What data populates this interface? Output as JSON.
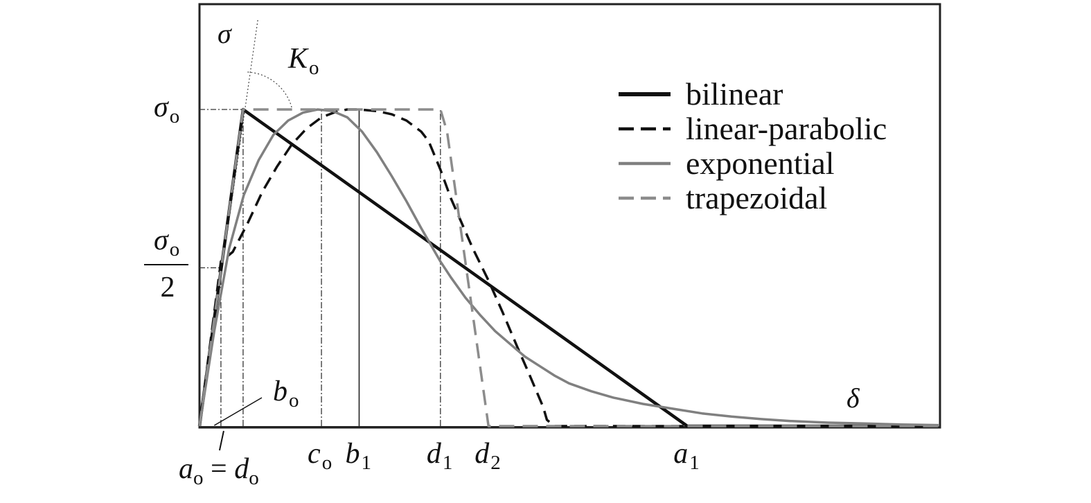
{
  "chart_data": {
    "type": "line",
    "title": "",
    "xlabel": "δ",
    "ylabel": "σ",
    "xlim": [
      0,
      100
    ],
    "ylim": [
      0,
      1.2
    ],
    "grid": false,
    "legend_placement": "top-right",
    "peak_label": {
      "main": "σ",
      "sub": "o"
    },
    "half_label": {
      "num_main": "σ",
      "num_sub": "o",
      "den": "2"
    },
    "stiffness_label": {
      "main": "K",
      "sub": "o"
    },
    "x_markers": [
      {
        "id": "a0",
        "x": 2.9
      },
      {
        "id": "b0",
        "x": 5.9
      },
      {
        "id": "c0",
        "x": 16.5
      },
      {
        "id": "b1",
        "x": 21.6
      },
      {
        "id": "d1",
        "x": 32.6
      },
      {
        "id": "d2",
        "x": 39.1
      },
      {
        "id": "a1",
        "x": 66.0
      }
    ],
    "x_labels": [
      {
        "id": "c0",
        "main": "c",
        "sub": "o",
        "x": 16.5
      },
      {
        "id": "b1",
        "main": "b",
        "sub": "1",
        "x": 21.6
      },
      {
        "id": "d1",
        "main": "d",
        "sub": "1",
        "x": 32.6
      },
      {
        "id": "d2",
        "main": "d",
        "sub": "2",
        "x": 39.1
      },
      {
        "id": "a1",
        "main": "a",
        "sub": "1",
        "x": 66.0
      }
    ],
    "a0_label": {
      "a_main": "a",
      "a_sub": "o",
      "eq": "=",
      "d_main": "d",
      "d_sub": "o"
    },
    "b0_label": {
      "main": "b",
      "sub": "o"
    },
    "series": [
      {
        "name": "bilinear",
        "color": "#111111",
        "dash": "solid",
        "x": [
          0,
          5.9,
          66.0,
          100
        ],
        "y": [
          0,
          1.0,
          0,
          0
        ]
      },
      {
        "name": "linear-parabolic",
        "color": "#111111",
        "dash": "dashed",
        "x": [
          0,
          2.9,
          4.5,
          6.5,
          8.5,
          10.5,
          12.5,
          14.5,
          16.5,
          18.5,
          20.0,
          21.6,
          24.0,
          26.0,
          28.0,
          30.0,
          31.0,
          32.6,
          34.0,
          35.5,
          37.0,
          39.1,
          41.0,
          43.0,
          44.5,
          46.5,
          47.0,
          48.0,
          100
        ],
        "y": [
          0,
          0.52,
          0.55,
          0.64,
          0.74,
          0.82,
          0.89,
          0.94,
          0.975,
          0.993,
          1.0,
          1.0,
          0.995,
          0.985,
          0.965,
          0.93,
          0.9,
          0.81,
          0.72,
          0.64,
          0.56,
          0.46,
          0.36,
          0.25,
          0.17,
          0.06,
          0.02,
          0,
          0
        ]
      },
      {
        "name": "exponential",
        "color": "#808080",
        "dash": "solid",
        "x": [
          0,
          2,
          4,
          6,
          8,
          10,
          12,
          14,
          16,
          18,
          20,
          22,
          24,
          26,
          28,
          30,
          32.6,
          34,
          36,
          38,
          40,
          42,
          44,
          46,
          48,
          50,
          53,
          56,
          60,
          64,
          68,
          72,
          76,
          80,
          85,
          90,
          95,
          100
        ],
        "y": [
          0,
          0.3,
          0.56,
          0.73,
          0.84,
          0.92,
          0.965,
          0.99,
          1.0,
          0.995,
          0.975,
          0.93,
          0.865,
          0.79,
          0.71,
          0.625,
          0.52,
          0.47,
          0.405,
          0.35,
          0.3,
          0.26,
          0.22,
          0.19,
          0.16,
          0.135,
          0.11,
          0.09,
          0.07,
          0.055,
          0.04,
          0.03,
          0.022,
          0.016,
          0.011,
          0.008,
          0.005,
          0.003
        ]
      },
      {
        "name": "trapezoidal",
        "color": "#8c8c8c",
        "dash": "dashed",
        "x": [
          0,
          5.9,
          32.6,
          33.5,
          39.1,
          100
        ],
        "y": [
          0,
          1.0,
          1.0,
          0.93,
          0,
          0
        ]
      }
    ]
  }
}
